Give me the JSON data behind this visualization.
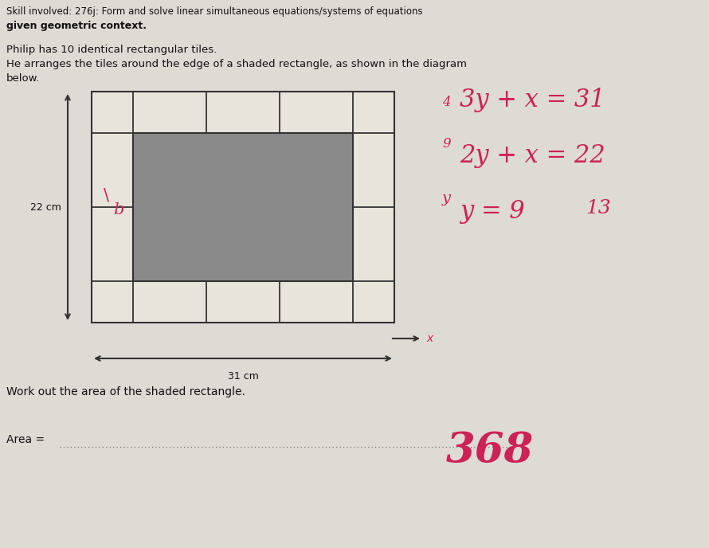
{
  "background_color": "#dedad4",
  "title_line1": "Skill involved: 276j: Form and solve linear simultaneous equations/systems of equations",
  "title_line2": "given geometric context.",
  "problem_line1": "Philip has 10 identical rectangular tiles.",
  "problem_line2": "He arranges the tiles around the edge of a shaded rectangle, as shown in the diagram",
  "problem_line3": "below.",
  "question": "Work out the area of the shaded rectangle.",
  "answer_label": "Area = ",
  "answer_value": "368",
  "dim_width": "31 cm",
  "dim_height": "22 cm",
  "x_label": "x",
  "handwritten_eq1_num": "4",
  "handwritten_eq2_num": "9",
  "handwritten_sub": "y",
  "handwritten_extra": "13",
  "shaded_rect_color": "#8a8a8a",
  "tile_face_color": "#e8e4dc",
  "tile_line_color": "#333333",
  "arrow_color": "#333333",
  "handwritten_color": "#cc2255"
}
